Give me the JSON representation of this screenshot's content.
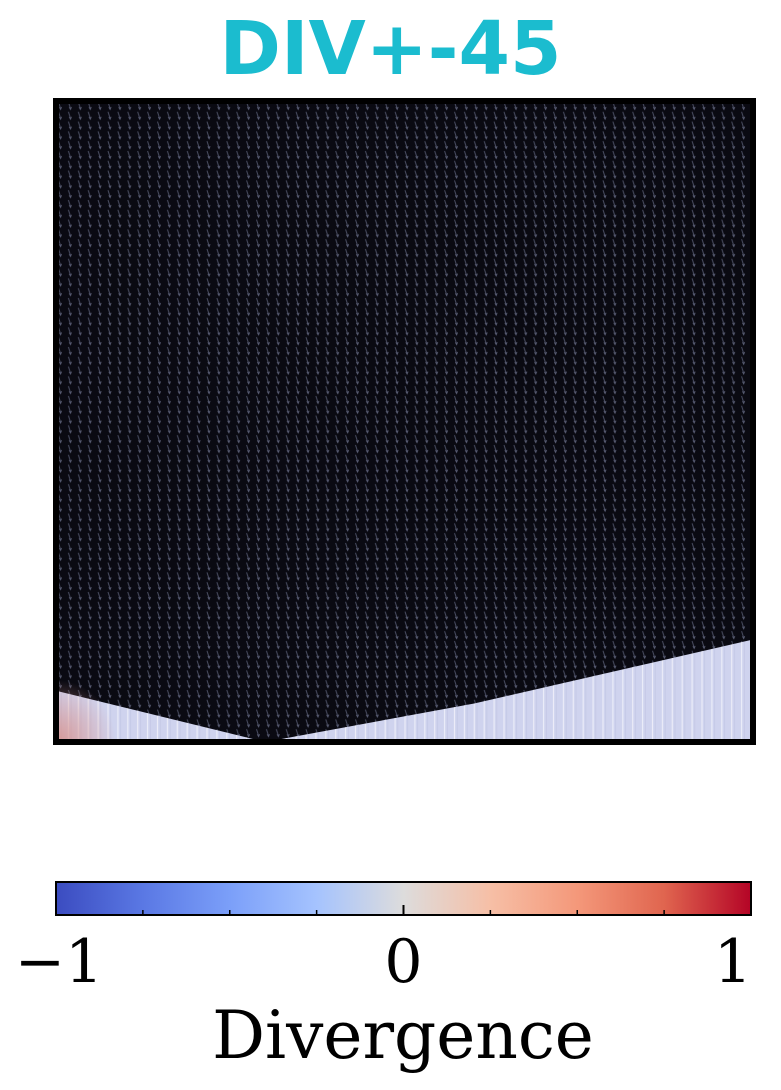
{
  "chart_data": {
    "type": "heatmap",
    "title": "DIV+-45",
    "xlabel": "",
    "ylabel": "",
    "colorbar": {
      "label": "Divergence",
      "ticks": [
        {
          "value": -1,
          "label": "−1"
        },
        {
          "value": 0,
          "label": "0"
        },
        {
          "value": 1,
          "label": "1"
        }
      ],
      "range": [
        -1,
        1
      ],
      "colormap": "coolwarm"
    },
    "field": {
      "background": "#0a0a12",
      "region_color": "#cfd3ee",
      "boundary": {
        "x": [
          0.0,
          0.3,
          0.6,
          1.0
        ],
        "y": [
          0.08,
          0.0,
          0.06,
          0.16
        ]
      },
      "corner_value": 1,
      "grid": false
    }
  },
  "colors": {
    "title": "#1bbccf",
    "frame": "#000000",
    "coolwarm_low": "#3b4cc0",
    "coolwarm_mid": "#dddddd",
    "coolwarm_high": "#b40426"
  }
}
